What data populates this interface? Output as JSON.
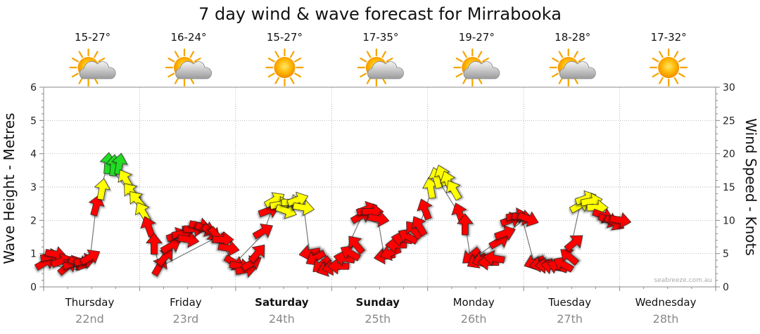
{
  "chart_data": {
    "type": "line",
    "title": "7 day wind & wave forecast for Mirrabooka",
    "ylabel": "Wave Height - Metres",
    "ylabel_right": "Wind Speed - Knots",
    "ylim": [
      0,
      6
    ],
    "ylim_right": [
      0,
      30
    ],
    "yticks_left": [
      "0",
      "1",
      "2",
      "3",
      "4",
      "5",
      "6"
    ],
    "yticks_right": [
      "0",
      "5",
      "10",
      "15",
      "20",
      "25",
      "30"
    ],
    "grid": true,
    "credit": "seabreeze.com.au",
    "days": [
      {
        "day": "Thursday",
        "date": "22nd",
        "temp": "15-27°",
        "weather": "partly-cloudy",
        "bold": false
      },
      {
        "day": "Friday",
        "date": "23rd",
        "temp": "16-24°",
        "weather": "partly-cloudy",
        "bold": false
      },
      {
        "day": "Saturday",
        "date": "24th",
        "temp": "15-27°",
        "weather": "sunny",
        "bold": true
      },
      {
        "day": "Sunday",
        "date": "25th",
        "temp": "17-35°",
        "weather": "partly-cloudy",
        "bold": true
      },
      {
        "day": "Monday",
        "date": "26th",
        "temp": "19-27°",
        "weather": "partly-cloudy",
        "bold": false
      },
      {
        "day": "Tuesday",
        "date": "27th",
        "temp": "18-28°",
        "weather": "partly-cloudy",
        "bold": false
      },
      {
        "day": "Wednesday",
        "date": "28th",
        "temp": "17-32°",
        "weather": "sunny",
        "bold": false
      }
    ],
    "wind_colors": {
      "strong": "#22dd22",
      "moderate": "#ffff00",
      "light": "#ff0000"
    },
    "series": [
      {
        "name": "Wind Speed - Knots",
        "points": [
          {
            "t": 0.0,
            "v": 3.7,
            "dir": 60,
            "c": "light"
          },
          {
            "t": 0.06,
            "v": 4.6,
            "dir": 80,
            "c": "light"
          },
          {
            "t": 0.11,
            "v": 4.9,
            "dir": 100,
            "c": "light"
          },
          {
            "t": 0.17,
            "v": 3.9,
            "dir": 70,
            "c": "light"
          },
          {
            "t": 0.23,
            "v": 3.1,
            "dir": 50,
            "c": "light"
          },
          {
            "t": 0.29,
            "v": 3.6,
            "dir": 70,
            "c": "light"
          },
          {
            "t": 0.35,
            "v": 3.6,
            "dir": 110,
            "c": "light"
          },
          {
            "t": 0.41,
            "v": 3.9,
            "dir": 80,
            "c": "light"
          },
          {
            "t": 0.47,
            "v": 4.5,
            "dir": 60,
            "c": "light"
          },
          {
            "t": 0.53,
            "v": 12.3,
            "dir": 15,
            "c": "light"
          },
          {
            "t": 0.59,
            "v": 14.7,
            "dir": 10,
            "c": "moderate"
          },
          {
            "t": 0.65,
            "v": 18.6,
            "dir": 5,
            "c": "strong"
          },
          {
            "t": 0.71,
            "v": 18.3,
            "dir": 5,
            "c": "strong"
          },
          {
            "t": 0.77,
            "v": 18.5,
            "dir": 10,
            "c": "strong"
          },
          {
            "t": 0.83,
            "v": 16.2,
            "dir": 330,
            "c": "moderate"
          },
          {
            "t": 0.89,
            "v": 14.3,
            "dir": 320,
            "c": "moderate"
          },
          {
            "t": 0.95,
            "v": 13.1,
            "dir": 320,
            "c": "moderate"
          },
          {
            "t": 1.01,
            "v": 11.3,
            "dir": 330,
            "c": "moderate"
          },
          {
            "t": 1.07,
            "v": 9.1,
            "dir": 340,
            "c": "light"
          },
          {
            "t": 1.13,
            "v": 6.5,
            "dir": 0,
            "c": "light"
          },
          {
            "t": 1.19,
            "v": 3.2,
            "dir": 30,
            "c": "light"
          },
          {
            "t": 1.25,
            "v": 4.6,
            "dir": 40,
            "c": "light"
          },
          {
            "t": 1.31,
            "v": 6.2,
            "dir": 60,
            "c": "light"
          },
          {
            "t": 1.37,
            "v": 7.8,
            "dir": 70,
            "c": "light"
          },
          {
            "t": 1.43,
            "v": 8.0,
            "dir": 80,
            "c": "light"
          },
          {
            "t": 1.49,
            "v": 7.1,
            "dir": 100,
            "c": "light"
          },
          {
            "t": 1.55,
            "v": 8.7,
            "dir": 90,
            "c": "light"
          },
          {
            "t": 1.61,
            "v": 9.2,
            "dir": 100,
            "c": "light"
          },
          {
            "t": 1.67,
            "v": 8.7,
            "dir": 110,
            "c": "light"
          },
          {
            "t": 1.73,
            "v": 8.1,
            "dir": 130,
            "c": "light"
          },
          {
            "t": 1.79,
            "v": 7.6,
            "dir": 140,
            "c": "light"
          },
          {
            "t": 1.85,
            "v": 7.1,
            "dir": 90,
            "c": "light"
          },
          {
            "t": 1.91,
            "v": 5.8,
            "dir": 100,
            "c": "light"
          },
          {
            "t": 1.97,
            "v": 3.6,
            "dir": 120,
            "c": "light"
          },
          {
            "t": 2.03,
            "v": 3.1,
            "dir": 100,
            "c": "light"
          },
          {
            "t": 2.09,
            "v": 2.6,
            "dir": 80,
            "c": "light"
          },
          {
            "t": 2.15,
            "v": 3.6,
            "dir": 60,
            "c": "light"
          },
          {
            "t": 2.21,
            "v": 5.1,
            "dir": 40,
            "c": "light"
          },
          {
            "t": 2.27,
            "v": 8.4,
            "dir": 60,
            "c": "light"
          },
          {
            "t": 2.33,
            "v": 11.5,
            "dir": 70,
            "c": "light"
          },
          {
            "t": 2.39,
            "v": 13.1,
            "dir": 60,
            "c": "moderate"
          },
          {
            "t": 2.45,
            "v": 12.4,
            "dir": 80,
            "c": "moderate"
          },
          {
            "t": 2.51,
            "v": 11.4,
            "dir": 110,
            "c": "moderate"
          },
          {
            "t": 2.57,
            "v": 12.7,
            "dir": 90,
            "c": "moderate"
          },
          {
            "t": 2.63,
            "v": 13.1,
            "dir": 70,
            "c": "moderate"
          },
          {
            "t": 2.69,
            "v": 11.9,
            "dir": 100,
            "c": "moderate"
          },
          {
            "t": 2.75,
            "v": 5.1,
            "dir": 260,
            "c": "light"
          },
          {
            "t": 2.81,
            "v": 4.3,
            "dir": 240,
            "c": "light"
          },
          {
            "t": 2.87,
            "v": 3.3,
            "dir": 230,
            "c": "light"
          },
          {
            "t": 2.93,
            "v": 2.7,
            "dir": 250,
            "c": "light"
          },
          {
            "t": 2.99,
            "v": 2.9,
            "dir": 260,
            "c": "light"
          },
          {
            "t": 3.05,
            "v": 3.1,
            "dir": 270,
            "c": "light"
          },
          {
            "t": 3.11,
            "v": 4.3,
            "dir": 280,
            "c": "light"
          },
          {
            "t": 3.17,
            "v": 5.1,
            "dir": 300,
            "c": "light"
          },
          {
            "t": 3.23,
            "v": 6.4,
            "dir": 320,
            "c": "light"
          },
          {
            "t": 3.29,
            "v": 10.7,
            "dir": 60,
            "c": "light"
          },
          {
            "t": 3.35,
            "v": 11.7,
            "dir": 70,
            "c": "light"
          },
          {
            "t": 3.41,
            "v": 11.3,
            "dir": 90,
            "c": "light"
          },
          {
            "t": 3.47,
            "v": 10.2,
            "dir": 100,
            "c": "light"
          },
          {
            "t": 3.53,
            "v": 4.6,
            "dir": 260,
            "c": "light"
          },
          {
            "t": 3.59,
            "v": 5.1,
            "dir": 250,
            "c": "light"
          },
          {
            "t": 3.65,
            "v": 6.3,
            "dir": 270,
            "c": "light"
          },
          {
            "t": 3.71,
            "v": 7.2,
            "dir": 280,
            "c": "light"
          },
          {
            "t": 3.77,
            "v": 7.6,
            "dir": 300,
            "c": "light"
          },
          {
            "t": 3.83,
            "v": 8.6,
            "dir": 320,
            "c": "light"
          },
          {
            "t": 3.89,
            "v": 9.2,
            "dir": 330,
            "c": "light"
          },
          {
            "t": 3.95,
            "v": 11.7,
            "dir": 340,
            "c": "light"
          },
          {
            "t": 4.01,
            "v": 14.9,
            "dir": 350,
            "c": "moderate"
          },
          {
            "t": 4.07,
            "v": 16.4,
            "dir": 345,
            "c": "moderate"
          },
          {
            "t": 4.13,
            "v": 16.8,
            "dir": 340,
            "c": "moderate"
          },
          {
            "t": 4.19,
            "v": 15.9,
            "dir": 340,
            "c": "moderate"
          },
          {
            "t": 4.25,
            "v": 14.6,
            "dir": 330,
            "c": "moderate"
          },
          {
            "t": 4.31,
            "v": 11.1,
            "dir": 340,
            "c": "light"
          },
          {
            "t": 4.37,
            "v": 9.4,
            "dir": 0,
            "c": "light"
          },
          {
            "t": 4.43,
            "v": 4.6,
            "dir": 230,
            "c": "light"
          },
          {
            "t": 4.49,
            "v": 3.9,
            "dir": 240,
            "c": "light"
          },
          {
            "t": 4.55,
            "v": 4.1,
            "dir": 250,
            "c": "light"
          },
          {
            "t": 4.61,
            "v": 3.7,
            "dir": 270,
            "c": "light"
          },
          {
            "t": 4.67,
            "v": 4.3,
            "dir": 280,
            "c": "light"
          },
          {
            "t": 4.73,
            "v": 6.9,
            "dir": 60,
            "c": "light"
          },
          {
            "t": 4.79,
            "v": 8.1,
            "dir": 70,
            "c": "light"
          },
          {
            "t": 4.85,
            "v": 10.1,
            "dir": 70,
            "c": "light"
          },
          {
            "t": 4.91,
            "v": 10.7,
            "dir": 80,
            "c": "light"
          },
          {
            "t": 4.97,
            "v": 10.4,
            "dir": 100,
            "c": "light"
          },
          {
            "t": 5.03,
            "v": 10.2,
            "dir": 110,
            "c": "light"
          },
          {
            "t": 5.09,
            "v": 3.7,
            "dir": 250,
            "c": "light"
          },
          {
            "t": 5.15,
            "v": 3.4,
            "dir": 260,
            "c": "light"
          },
          {
            "t": 5.21,
            "v": 3.2,
            "dir": 270,
            "c": "light"
          },
          {
            "t": 5.27,
            "v": 3.1,
            "dir": 280,
            "c": "light"
          },
          {
            "t": 5.33,
            "v": 3.1,
            "dir": 290,
            "c": "light"
          },
          {
            "t": 5.39,
            "v": 3.4,
            "dir": 300,
            "c": "light"
          },
          {
            "t": 5.45,
            "v": 4.6,
            "dir": 310,
            "c": "light"
          },
          {
            "t": 5.51,
            "v": 6.7,
            "dir": 50,
            "c": "light"
          },
          {
            "t": 5.57,
            "v": 12.3,
            "dir": 60,
            "c": "moderate"
          },
          {
            "t": 5.63,
            "v": 13.3,
            "dir": 70,
            "c": "moderate"
          },
          {
            "t": 5.69,
            "v": 12.9,
            "dir": 80,
            "c": "moderate"
          },
          {
            "t": 5.75,
            "v": 11.9,
            "dir": 90,
            "c": "moderate"
          },
          {
            "t": 5.81,
            "v": 10.7,
            "dir": 110,
            "c": "light"
          },
          {
            "t": 5.87,
            "v": 10.0,
            "dir": 110,
            "c": "light"
          },
          {
            "t": 5.93,
            "v": 9.6,
            "dir": 120,
            "c": "light"
          },
          {
            "t": 5.99,
            "v": 10.0,
            "dir": 100,
            "c": "light"
          }
        ]
      }
    ],
    "wave_line": [
      {
        "t": 0.0,
        "h": 0.7
      },
      {
        "t": 0.35,
        "h": 0.5
      },
      {
        "t": 0.47,
        "h": 1.0
      },
      {
        "t": 0.53,
        "h": 2.5
      },
      {
        "t": 0.65,
        "h": 3.7
      },
      {
        "t": 1.01,
        "h": 2.3
      },
      {
        "t": 1.19,
        "h": 0.6
      },
      {
        "t": 1.79,
        "h": 1.5
      },
      {
        "t": 1.97,
        "h": 0.7
      },
      {
        "t": 2.27,
        "h": 1.6
      },
      {
        "t": 2.39,
        "h": 2.6
      },
      {
        "t": 2.69,
        "h": 2.4
      },
      {
        "t": 2.75,
        "h": 1.0
      },
      {
        "t": 3.05,
        "h": 0.6
      },
      {
        "t": 3.29,
        "h": 2.1
      },
      {
        "t": 3.47,
        "h": 1.9
      },
      {
        "t": 3.53,
        "h": 0.9
      },
      {
        "t": 3.89,
        "h": 1.8
      },
      {
        "t": 4.07,
        "h": 3.3
      },
      {
        "t": 4.37,
        "h": 1.9
      },
      {
        "t": 4.43,
        "h": 0.8
      },
      {
        "t": 4.73,
        "h": 1.4
      },
      {
        "t": 4.97,
        "h": 2.0
      },
      {
        "t": 5.09,
        "h": 0.7
      },
      {
        "t": 5.45,
        "h": 0.9
      },
      {
        "t": 5.57,
        "h": 2.5
      },
      {
        "t": 5.99,
        "h": 2.0
      }
    ]
  }
}
